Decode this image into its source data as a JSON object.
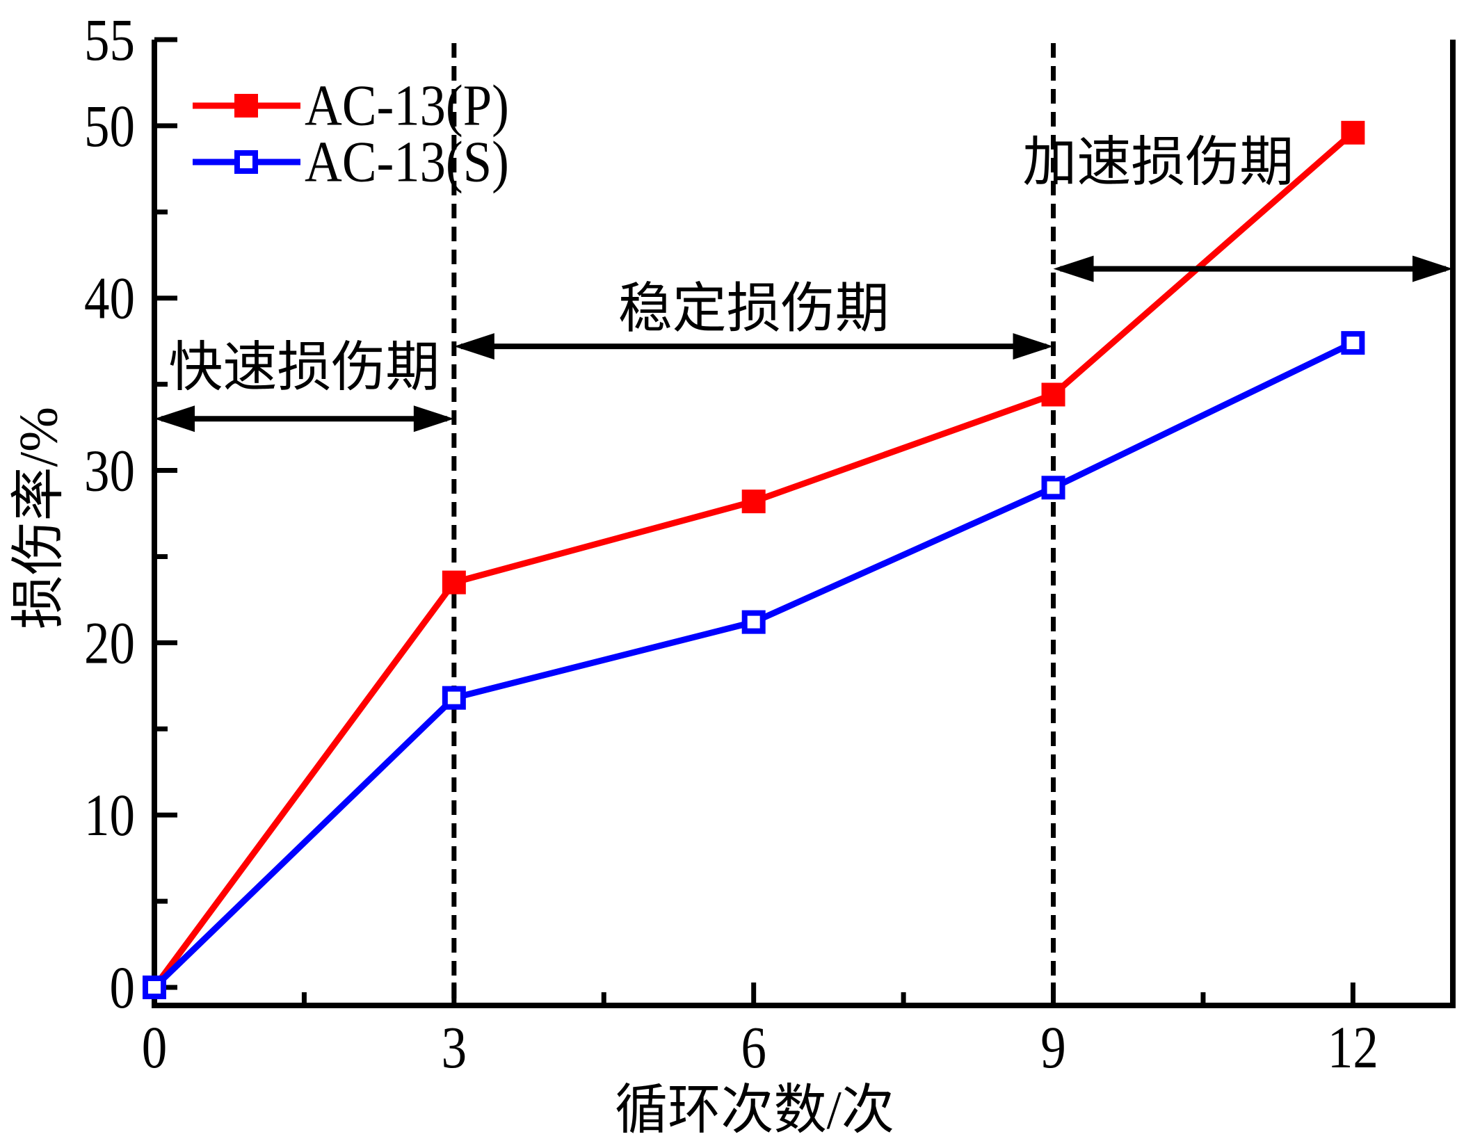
{
  "figure": {
    "background": "#ffffff"
  },
  "chart_data": {
    "type": "line",
    "x": [
      0,
      3,
      6,
      9,
      12
    ],
    "series": [
      {
        "name": "AC-13(P)",
        "marker": "filled-square",
        "color": "#ff0000",
        "values": [
          0,
          23.5,
          28.2,
          34.4,
          49.6
        ]
      },
      {
        "name": "AC-13(S)",
        "marker": "open-square",
        "color": "#0000ff",
        "values": [
          0,
          16.8,
          21.2,
          29.0,
          37.4
        ]
      }
    ],
    "xlabel": "循环次数/次",
    "ylabel": "损伤率/%",
    "xlim": [
      0,
      13
    ],
    "ylim": [
      -1.05,
      55
    ],
    "x_major_ticks": [
      0,
      3,
      6,
      9,
      12
    ],
    "x_minor_ticks": [
      1.5,
      4.5,
      7.5,
      10.5
    ],
    "y_major_ticks": [
      0,
      10,
      20,
      30,
      40,
      50,
      55
    ],
    "y_minor_ticks": [
      5,
      15,
      25,
      35,
      45
    ],
    "grid": false,
    "legend": {
      "position": "top-left"
    },
    "phase_boundaries_x": [
      3,
      9
    ],
    "phases": [
      {
        "label": "快速损伤期",
        "x_span": [
          0,
          3
        ],
        "arrow_y": 33.0,
        "label_x": 1.5,
        "label_y": 36.0
      },
      {
        "label": "稳定损伤期",
        "x_span": [
          3,
          9
        ],
        "arrow_y": 37.2,
        "label_x": 6.0,
        "label_y": 39.4
      },
      {
        "label": "加速损伤期",
        "x_span": [
          9,
          13
        ],
        "arrow_y": 41.7,
        "label_x": 10.05,
        "label_y": 47.9
      }
    ],
    "axis_color": "#000000"
  }
}
